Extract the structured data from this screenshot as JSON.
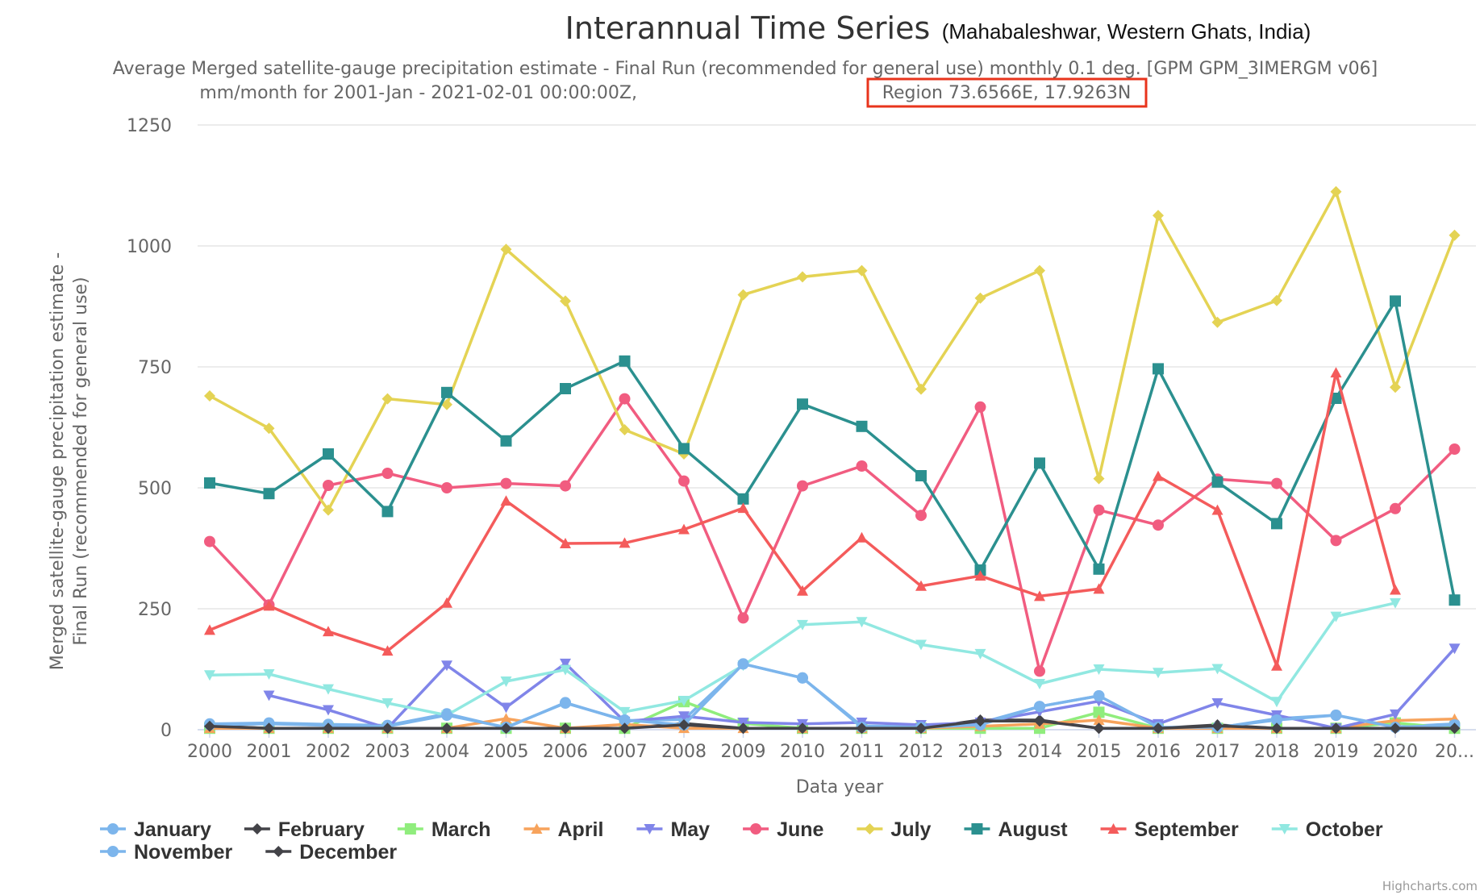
{
  "chart_data": {
    "type": "line",
    "title": "Interannual Time Series",
    "title_suffix": "(Mahabaleshwar, Western Ghats, India)",
    "subtitle_line1": "Average Merged satellite-gauge precipitation estimate - Final Run (recommended for general use) monthly 0.1 deg. [GPM GPM_3IMERGM v06]",
    "subtitle_line2_prefix": "mm/month for 2001-Jan - 2021-02-01 00:00:00Z,",
    "subtitle_line2_region": "Region 73.6566E, 17.9263N",
    "highlight_color": "#e8341c",
    "xlabel": "Data year",
    "ylabel_line1": "Merged satellite-gauge precipitation estimate -",
    "ylabel_line2": "Final Run (recommended for general use)",
    "categories": [
      "2000",
      "2001",
      "2002",
      "2003",
      "2004",
      "2005",
      "2006",
      "2007",
      "2008",
      "2009",
      "2010",
      "2011",
      "2012",
      "2013",
      "2014",
      "2015",
      "2016",
      "2017",
      "2018",
      "2019",
      "2020",
      "20..."
    ],
    "ylim": [
      0,
      1250
    ],
    "yticks": [
      0,
      250,
      500,
      750,
      1000,
      1250
    ],
    "grid": true,
    "legend_position": "bottom",
    "credits": "Highcharts.com",
    "series": [
      {
        "name": "January",
        "color": "#7cb5ec",
        "marker": "circle",
        "values": [
          12,
          14,
          11,
          9,
          33,
          4,
          56,
          19,
          21,
          136,
          107,
          8,
          6,
          14,
          48,
          70,
          5,
          4,
          23,
          30,
          6,
          12
        ]
      },
      {
        "name": "February",
        "color": "#434348",
        "marker": "diamond",
        "values": [
          8,
          3,
          3,
          3,
          3,
          3,
          3,
          3,
          13,
          3,
          3,
          3,
          3,
          20,
          20,
          3,
          3,
          10,
          3,
          3,
          3,
          3
        ]
      },
      {
        "name": "March",
        "color": "#90ed7d",
        "marker": "square",
        "values": [
          3,
          3,
          3,
          3,
          3,
          3,
          3,
          3,
          58,
          13,
          3,
          3,
          3,
          3,
          3,
          36,
          3,
          3,
          3,
          3,
          14,
          3
        ]
      },
      {
        "name": "April",
        "color": "#f7a35c",
        "marker": "triangle",
        "values": [
          3,
          3,
          3,
          3,
          3,
          23,
          3,
          11,
          3,
          3,
          3,
          3,
          3,
          7,
          12,
          20,
          3,
          3,
          3,
          3,
          19,
          22
        ]
      },
      {
        "name": "May",
        "color": "#8085e9",
        "marker": "triangle-down",
        "values": [
          null,
          71,
          41,
          3,
          133,
          46,
          137,
          17,
          28,
          15,
          12,
          15,
          10,
          15,
          37,
          59,
          12,
          55,
          30,
          3,
          32,
          168
        ]
      },
      {
        "name": "June",
        "color": "#f15c80",
        "marker": "circle",
        "values": [
          389,
          258,
          505,
          530,
          500,
          509,
          504,
          684,
          514,
          231,
          504,
          545,
          443,
          667,
          121,
          454,
          423,
          518,
          509,
          391,
          457,
          580
        ]
      },
      {
        "name": "July",
        "color": "#e4d354",
        "marker": "diamond",
        "values": [
          690,
          623,
          454,
          684,
          672,
          993,
          886,
          620,
          570,
          899,
          936,
          949,
          704,
          892,
          949,
          519,
          1063,
          842,
          887,
          1112,
          708,
          1022
        ]
      },
      {
        "name": "August",
        "color": "#2b908f",
        "marker": "square",
        "values": [
          510,
          488,
          570,
          451,
          697,
          597,
          705,
          762,
          581,
          477,
          673,
          627,
          525,
          330,
          551,
          332,
          746,
          512,
          426,
          685,
          886,
          268
        ]
      },
      {
        "name": "September",
        "color": "#f45b5b",
        "marker": "triangle",
        "values": [
          206,
          256,
          203,
          163,
          262,
          473,
          385,
          386,
          414,
          458,
          287,
          397,
          297,
          318,
          276,
          291,
          524,
          454,
          132,
          738,
          289,
          null
        ]
      },
      {
        "name": "October",
        "color": "#91e8e1",
        "marker": "triangle-down",
        "values": [
          113,
          115,
          84,
          55,
          30,
          100,
          124,
          37,
          60,
          133,
          217,
          223,
          176,
          157,
          95,
          125,
          118,
          126,
          58,
          234,
          262,
          null
        ]
      },
      {
        "name": "November",
        "color": "#7cb5ec",
        "marker": "circle",
        "values": [
          10,
          12,
          9,
          7,
          30,
          5,
          55,
          20,
          10,
          136,
          107,
          5,
          5,
          10,
          48,
          70,
          5,
          5,
          20,
          30,
          5,
          10
        ]
      },
      {
        "name": "December",
        "color": "#434348",
        "marker": "diamond",
        "values": [
          7,
          3,
          3,
          3,
          3,
          3,
          3,
          3,
          10,
          3,
          3,
          3,
          3,
          18,
          18,
          3,
          3,
          8,
          3,
          3,
          3,
          3
        ]
      }
    ]
  }
}
